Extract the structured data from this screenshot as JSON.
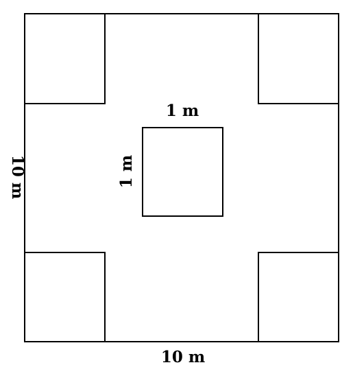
{
  "labels": {
    "outer_width": "10 m",
    "outer_height": "10 m",
    "inner_width": "1 m",
    "inner_height": "1 m"
  },
  "colors": {
    "stroke": "#000000",
    "background": "#ffffff"
  }
}
